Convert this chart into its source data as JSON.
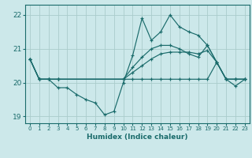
{
  "xlabel": "Humidex (Indice chaleur)",
  "ylabel": "",
  "bg_color": "#cce8ea",
  "grid_color": "#aacccc",
  "line_color": "#1a6b6b",
  "xlim": [
    -0.5,
    23.5
  ],
  "ylim": [
    18.8,
    22.3
  ],
  "yticks": [
    19,
    20,
    21,
    22
  ],
  "xticks": [
    0,
    1,
    2,
    3,
    4,
    5,
    6,
    7,
    8,
    9,
    10,
    11,
    12,
    13,
    14,
    15,
    16,
    17,
    18,
    19,
    20,
    21,
    22,
    23
  ],
  "lines": [
    {
      "x": [
        0,
        1,
        2,
        3,
        4,
        5,
        6,
        7,
        8,
        9,
        10,
        11,
        12,
        13,
        14,
        15,
        16,
        17,
        18,
        19,
        20,
        21,
        22,
        23
      ],
      "y": [
        20.7,
        20.1,
        20.1,
        19.85,
        19.85,
        19.65,
        19.5,
        19.4,
        19.05,
        19.15,
        20.0,
        20.8,
        21.9,
        21.25,
        21.5,
        22.0,
        21.65,
        21.5,
        21.4,
        21.1,
        20.6,
        20.1,
        19.9,
        20.1
      ]
    },
    {
      "x": [
        0,
        1,
        2,
        3,
        10,
        11,
        12,
        13,
        14,
        15,
        16,
        17,
        18,
        19,
        20,
        21,
        22,
        23
      ],
      "y": [
        20.7,
        20.1,
        20.1,
        20.1,
        20.1,
        20.45,
        20.75,
        21.0,
        21.1,
        21.1,
        21.0,
        20.85,
        20.75,
        21.1,
        20.6,
        20.1,
        20.1,
        20.1
      ]
    },
    {
      "x": [
        0,
        1,
        2,
        3,
        10,
        11,
        12,
        13,
        14,
        15,
        16,
        17,
        18,
        19,
        20,
        21,
        22,
        23
      ],
      "y": [
        20.7,
        20.1,
        20.1,
        20.1,
        20.1,
        20.3,
        20.5,
        20.7,
        20.85,
        20.9,
        20.9,
        20.9,
        20.85,
        20.95,
        20.6,
        20.1,
        20.1,
        20.1
      ]
    },
    {
      "x": [
        0,
        1,
        2,
        3,
        10,
        11,
        12,
        13,
        14,
        15,
        16,
        17,
        18,
        19,
        20,
        21,
        22,
        23
      ],
      "y": [
        20.7,
        20.1,
        20.1,
        20.1,
        20.1,
        20.1,
        20.1,
        20.1,
        20.1,
        20.1,
        20.1,
        20.1,
        20.1,
        20.1,
        20.6,
        20.1,
        20.1,
        20.1
      ]
    }
  ]
}
